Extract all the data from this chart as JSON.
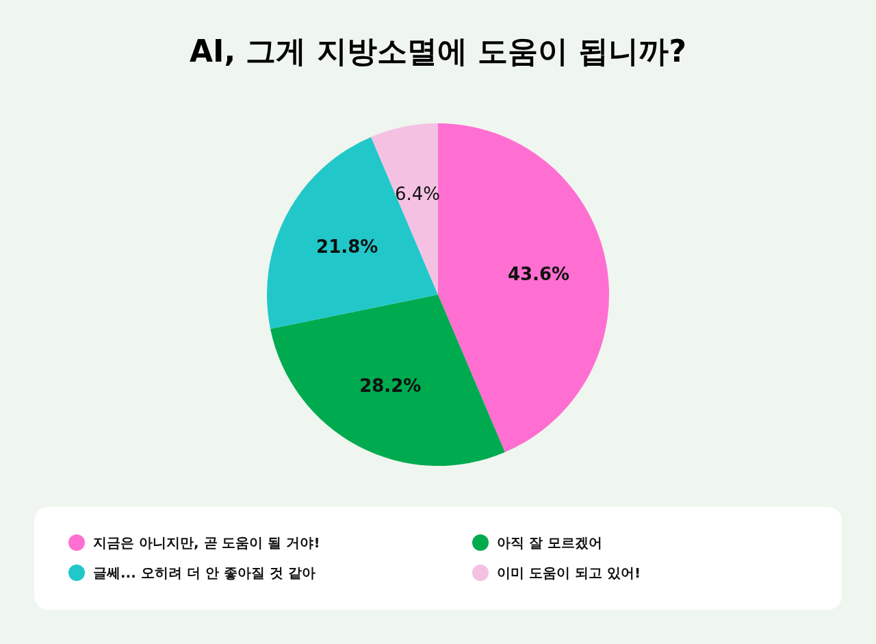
{
  "chart_data": {
    "type": "pie",
    "title": "AI, 그게 지방소멸에 도움이 됩니까?",
    "categories": [
      "지금은 아니지만, 곧 도움이 될 거야!",
      "아직 잘 모르겠어",
      "글쎄... 오히려 더 안 좋아질 것 같아",
      "이미 도움이 되고 있어!"
    ],
    "values": [
      43.6,
      28.2,
      21.8,
      6.4
    ],
    "colors": [
      "#ff6fd1",
      "#00aa4f",
      "#22c8c9",
      "#f5c1e3"
    ],
    "value_labels": [
      "43.6%",
      "28.2%",
      "21.8%",
      "6.4%"
    ],
    "legend": "bottom"
  }
}
